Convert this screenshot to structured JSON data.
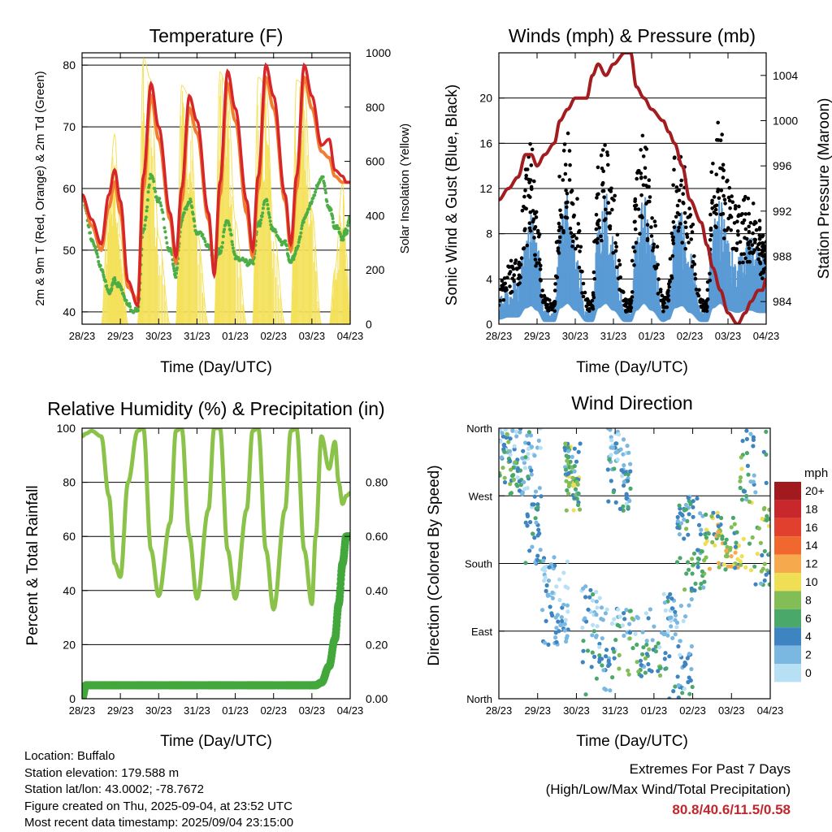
{
  "colors": {
    "temp_2m": "#d7262a",
    "temp_9m": "#f07e2e",
    "dewpoint": "#4cae45",
    "solar": "#f4e15a",
    "wind": "#5a9bd5",
    "gust": "#000000",
    "pressure": "#a31c20",
    "rh": "#8bc34a",
    "precip": "#43a83c"
  },
  "charts": {
    "temperature": {
      "title": "Temperature (F)",
      "ylabel": "2m & 9m T (Red, Orange) & 2m Td (Green)",
      "y2label": "Solar Insolation (Yellow)",
      "xlabel": "Time (Day/UTC)"
    },
    "winds": {
      "title": "Winds (mph) & Pressure (mb)",
      "ylabel": "Sonic Wind & Gust (Blue, Black)",
      "y2label": "Station Pressure (Maroon)",
      "xlabel": "Time (Day/UTC)"
    },
    "humidity": {
      "title": "Relative Humidity (%) & Precipitation (in)",
      "ylabel": "Percent & Total Rainfall",
      "xlabel": "Time (Day/UTC)"
    },
    "direction": {
      "title": "Wind Direction",
      "ylabel": "Direction (Colored By Speed)",
      "xlabel": "Time (Day/UTC)",
      "legend_title": "mph"
    }
  },
  "info": {
    "location": "Location: Buffalo",
    "elevation": "Station elevation: 179.588 m",
    "latlon": "Station lat/lon: 43.0002; -78.7672",
    "created": "Figure created on Thu, 2025-09-04, at 23:52 UTC",
    "recent": "Most recent data timestamp: 2025/09/04 23:15:00"
  },
  "extremes": {
    "title": "Extremes For Past 7 Days",
    "subtitle": "(High/Low/Max Wind/Total Precipitation)",
    "values": "80.8/40.6/11.5/0.58"
  },
  "chart_data": [
    {
      "type": "line",
      "title": "Temperature (F)",
      "x_ticks": [
        "28/23",
        "29/23",
        "30/23",
        "31/23",
        "01/23",
        "02/23",
        "03/23",
        "04/23"
      ],
      "x_range": [
        0,
        7
      ],
      "x": [
        0,
        0.25,
        0.5,
        0.7,
        0.85,
        1.0,
        1.2,
        1.45,
        1.6,
        1.8,
        2.0,
        2.3,
        2.45,
        2.6,
        2.8,
        3.0,
        3.3,
        3.45,
        3.6,
        3.8,
        4.0,
        4.3,
        4.45,
        4.6,
        4.8,
        5.0,
        5.3,
        5.45,
        5.6,
        5.8,
        6.0,
        6.25,
        6.45,
        6.6,
        6.8,
        6.9,
        7.0
      ],
      "series": [
        {
          "name": "2m T",
          "values": [
            59,
            55,
            51,
            59,
            63,
            58,
            45,
            41,
            62,
            77,
            70,
            56,
            49,
            60,
            75,
            71,
            56,
            46,
            61,
            79,
            73,
            58,
            50,
            62,
            80,
            75,
            59,
            51,
            62,
            80,
            75,
            67,
            68,
            63,
            62,
            61,
            61
          ]
        },
        {
          "name": "9m T",
          "values": [
            59,
            54,
            50,
            57,
            61,
            56,
            44,
            42,
            60,
            75,
            68,
            55,
            48,
            58,
            73,
            69,
            55,
            47,
            59,
            77,
            71,
            56,
            49,
            60,
            78,
            73,
            58,
            50,
            60,
            78,
            73,
            66,
            65,
            62,
            61,
            61,
            61
          ]
        },
        {
          "name": "2m Td",
          "values": [
            59,
            52,
            47,
            43,
            45,
            44,
            41,
            40,
            53,
            62,
            58,
            50,
            46,
            55,
            58,
            53,
            51,
            48,
            50,
            55,
            49,
            48,
            48,
            54,
            58,
            53,
            51,
            48,
            50,
            55,
            58,
            62,
            57,
            54,
            52,
            53,
            55
          ]
        },
        {
          "name": "Solar Insolation",
          "values": [
            0,
            0,
            0,
            480,
            700,
            320,
            0,
            0,
            980,
            900,
            320,
            0,
            0,
            880,
            840,
            340,
            0,
            0,
            930,
            860,
            380,
            0,
            0,
            910,
            880,
            340,
            0,
            0,
            900,
            880,
            420,
            0,
            0,
            200,
            520,
            260,
            0
          ]
        }
      ],
      "ylim": [
        38,
        82
      ],
      "y2lim": [
        0,
        1000
      ],
      "y_ticks": [
        40,
        50,
        60,
        70,
        80
      ],
      "y2_ticks": [
        0,
        200,
        400,
        600,
        800,
        1000
      ]
    },
    {
      "type": "line",
      "title": "Winds (mph) & Pressure (mb)",
      "x_ticks": [
        "28/23",
        "29/23",
        "30/23",
        "31/23",
        "01/23",
        "02/23",
        "03/23",
        "04/23"
      ],
      "x_range": [
        0,
        7
      ],
      "x": [
        0,
        0.25,
        0.5,
        0.7,
        0.85,
        1.0,
        1.2,
        1.45,
        1.6,
        1.8,
        2.0,
        2.3,
        2.45,
        2.6,
        2.8,
        3.0,
        3.3,
        3.45,
        3.6,
        3.8,
        4.0,
        4.3,
        4.45,
        4.6,
        4.8,
        5.0,
        5.3,
        5.45,
        5.6,
        5.8,
        6.0,
        6.25,
        6.45,
        6.6,
        6.8,
        6.9,
        7.0
      ],
      "series": [
        {
          "name": "Sonic Wind",
          "values": [
            2,
            3,
            3,
            7,
            8,
            6,
            1,
            1,
            7,
            9,
            6,
            1,
            1,
            7,
            9,
            6,
            1,
            1,
            6,
            9,
            6,
            1,
            2,
            7,
            8,
            5,
            1,
            1,
            7,
            9,
            6,
            5,
            6,
            6,
            5,
            5,
            5
          ]
        },
        {
          "name": "Gust",
          "values": [
            3,
            5,
            5,
            12,
            14,
            9,
            2,
            2,
            13,
            15,
            10,
            2,
            2,
            13,
            14,
            10,
            2,
            2,
            12,
            15,
            10,
            2,
            3,
            13,
            13,
            9,
            2,
            2,
            13,
            16,
            11,
            9,
            10,
            10,
            8,
            7,
            7
          ]
        },
        {
          "name": "Station Pressure",
          "values": [
            993,
            994,
            995,
            997,
            997,
            996,
            997,
            998,
            1000,
            1001,
            1002,
            1002,
            1004,
            1005,
            1004,
            1005,
            1006,
            1006,
            1003,
            1002,
            1001,
            1000,
            999,
            998,
            996,
            993,
            991,
            989,
            987,
            985,
            983,
            982,
            983,
            984,
            985,
            985,
            986
          ]
        }
      ],
      "ylim": [
        0,
        24
      ],
      "y2lim": [
        982,
        1006
      ],
      "y_ticks": [
        0,
        4,
        8,
        12,
        16,
        20
      ],
      "y2_ticks": [
        984,
        988,
        992,
        996,
        1000,
        1004
      ]
    },
    {
      "type": "line",
      "title": "Relative Humidity (%) & Precipitation (in)",
      "x_ticks": [
        "28/23",
        "29/23",
        "30/23",
        "31/23",
        "01/23",
        "02/23",
        "03/23",
        "04/23"
      ],
      "x_range": [
        0,
        7
      ],
      "x": [
        0,
        0.1,
        0.25,
        0.5,
        0.7,
        0.85,
        1.0,
        1.2,
        1.45,
        1.6,
        1.8,
        2.0,
        2.3,
        2.45,
        2.6,
        2.8,
        3.0,
        3.3,
        3.45,
        3.6,
        3.8,
        4.0,
        4.3,
        4.45,
        4.6,
        4.8,
        5.0,
        5.3,
        5.45,
        5.6,
        5.8,
        6.0,
        6.1,
        6.25,
        6.45,
        6.6,
        6.7,
        6.8,
        6.9,
        7.0
      ],
      "series": [
        {
          "name": "Relative Humidity",
          "values": [
            97,
            98,
            99,
            97,
            75,
            50,
            45,
            80,
            99,
            100,
            55,
            38,
            65,
            99,
            100,
            60,
            37,
            70,
            100,
            100,
            55,
            37,
            70,
            99,
            100,
            55,
            33,
            70,
            99,
            100,
            55,
            35,
            60,
            97,
            85,
            95,
            80,
            72,
            75,
            76
          ]
        },
        {
          "name": "Total Precipitation",
          "values": [
            0,
            0.05,
            0.05,
            0.05,
            0.05,
            0.05,
            0.05,
            0.05,
            0.05,
            0.05,
            0.05,
            0.05,
            0.05,
            0.05,
            0.05,
            0.05,
            0.05,
            0.05,
            0.05,
            0.05,
            0.05,
            0.05,
            0.05,
            0.05,
            0.05,
            0.05,
            0.05,
            0.05,
            0.05,
            0.05,
            0.05,
            0.05,
            0.05,
            0.06,
            0.12,
            0.22,
            0.35,
            0.5,
            0.6,
            0.6
          ]
        }
      ],
      "ylim": [
        0,
        100
      ],
      "y2lim": [
        0,
        1
      ],
      "y_ticks": [
        0,
        20,
        40,
        60,
        80,
        100
      ],
      "y2_ticks": [
        "0.00",
        "0.20",
        "0.40",
        "0.60",
        "0.80"
      ]
    },
    {
      "type": "scatter",
      "title": "Wind Direction",
      "x_ticks": [
        "28/23",
        "29/23",
        "30/23",
        "31/23",
        "01/23",
        "02/23",
        "03/23",
        "04/23"
      ],
      "x_range": [
        0,
        7
      ],
      "y_categories": [
        "North",
        "East",
        "South",
        "West",
        "North"
      ],
      "ylim": [
        0,
        360
      ],
      "clusters": [
        {
          "x": [
            0,
            0.6
          ],
          "dir": [
            270,
            360
          ],
          "speed": [
            0,
            8
          ]
        },
        {
          "x": [
            0.6,
            1.1
          ],
          "dir": [
            180,
            360
          ],
          "speed": [
            0,
            6
          ]
        },
        {
          "x": [
            1.1,
            1.8
          ],
          "dir": [
            70,
            190
          ],
          "speed": [
            0,
            4
          ]
        },
        {
          "x": [
            1.7,
            2.1
          ],
          "dir": [
            250,
            340
          ],
          "speed": [
            2,
            10
          ]
        },
        {
          "x": [
            2.1,
            3.0
          ],
          "dir": [
            0,
            150
          ],
          "speed": [
            0,
            6
          ]
        },
        {
          "x": [
            2.8,
            3.4
          ],
          "dir": [
            250,
            360
          ],
          "speed": [
            0,
            6
          ]
        },
        {
          "x": [
            3.0,
            4.2
          ],
          "dir": [
            30,
            120
          ],
          "speed": [
            0,
            8
          ]
        },
        {
          "x": [
            4.2,
            5.0
          ],
          "dir": [
            0,
            140
          ],
          "speed": [
            0,
            6
          ]
        },
        {
          "x": [
            4.6,
            5.3
          ],
          "dir": [
            140,
            270
          ],
          "speed": [
            2,
            8
          ]
        },
        {
          "x": [
            5.3,
            6.2
          ],
          "dir": [
            170,
            250
          ],
          "speed": [
            4,
            12
          ]
        },
        {
          "x": [
            6.2,
            7.0
          ],
          "dir": [
            150,
            360
          ],
          "speed": [
            2,
            10
          ]
        }
      ],
      "legend": [
        {
          "label": "20+",
          "color": "#a11a1e"
        },
        {
          "label": "18",
          "color": "#c8282c"
        },
        {
          "label": "16",
          "color": "#e0402d"
        },
        {
          "label": "14",
          "color": "#f0682e"
        },
        {
          "label": "12",
          "color": "#f7a94d"
        },
        {
          "label": "10",
          "color": "#eedf55"
        },
        {
          "label": "8",
          "color": "#82bd56"
        },
        {
          "label": "6",
          "color": "#4aa86a"
        },
        {
          "label": "4",
          "color": "#3e84c0"
        },
        {
          "label": "2",
          "color": "#7ab8e2"
        },
        {
          "label": "0",
          "color": "#b7e0f5"
        }
      ]
    }
  ]
}
